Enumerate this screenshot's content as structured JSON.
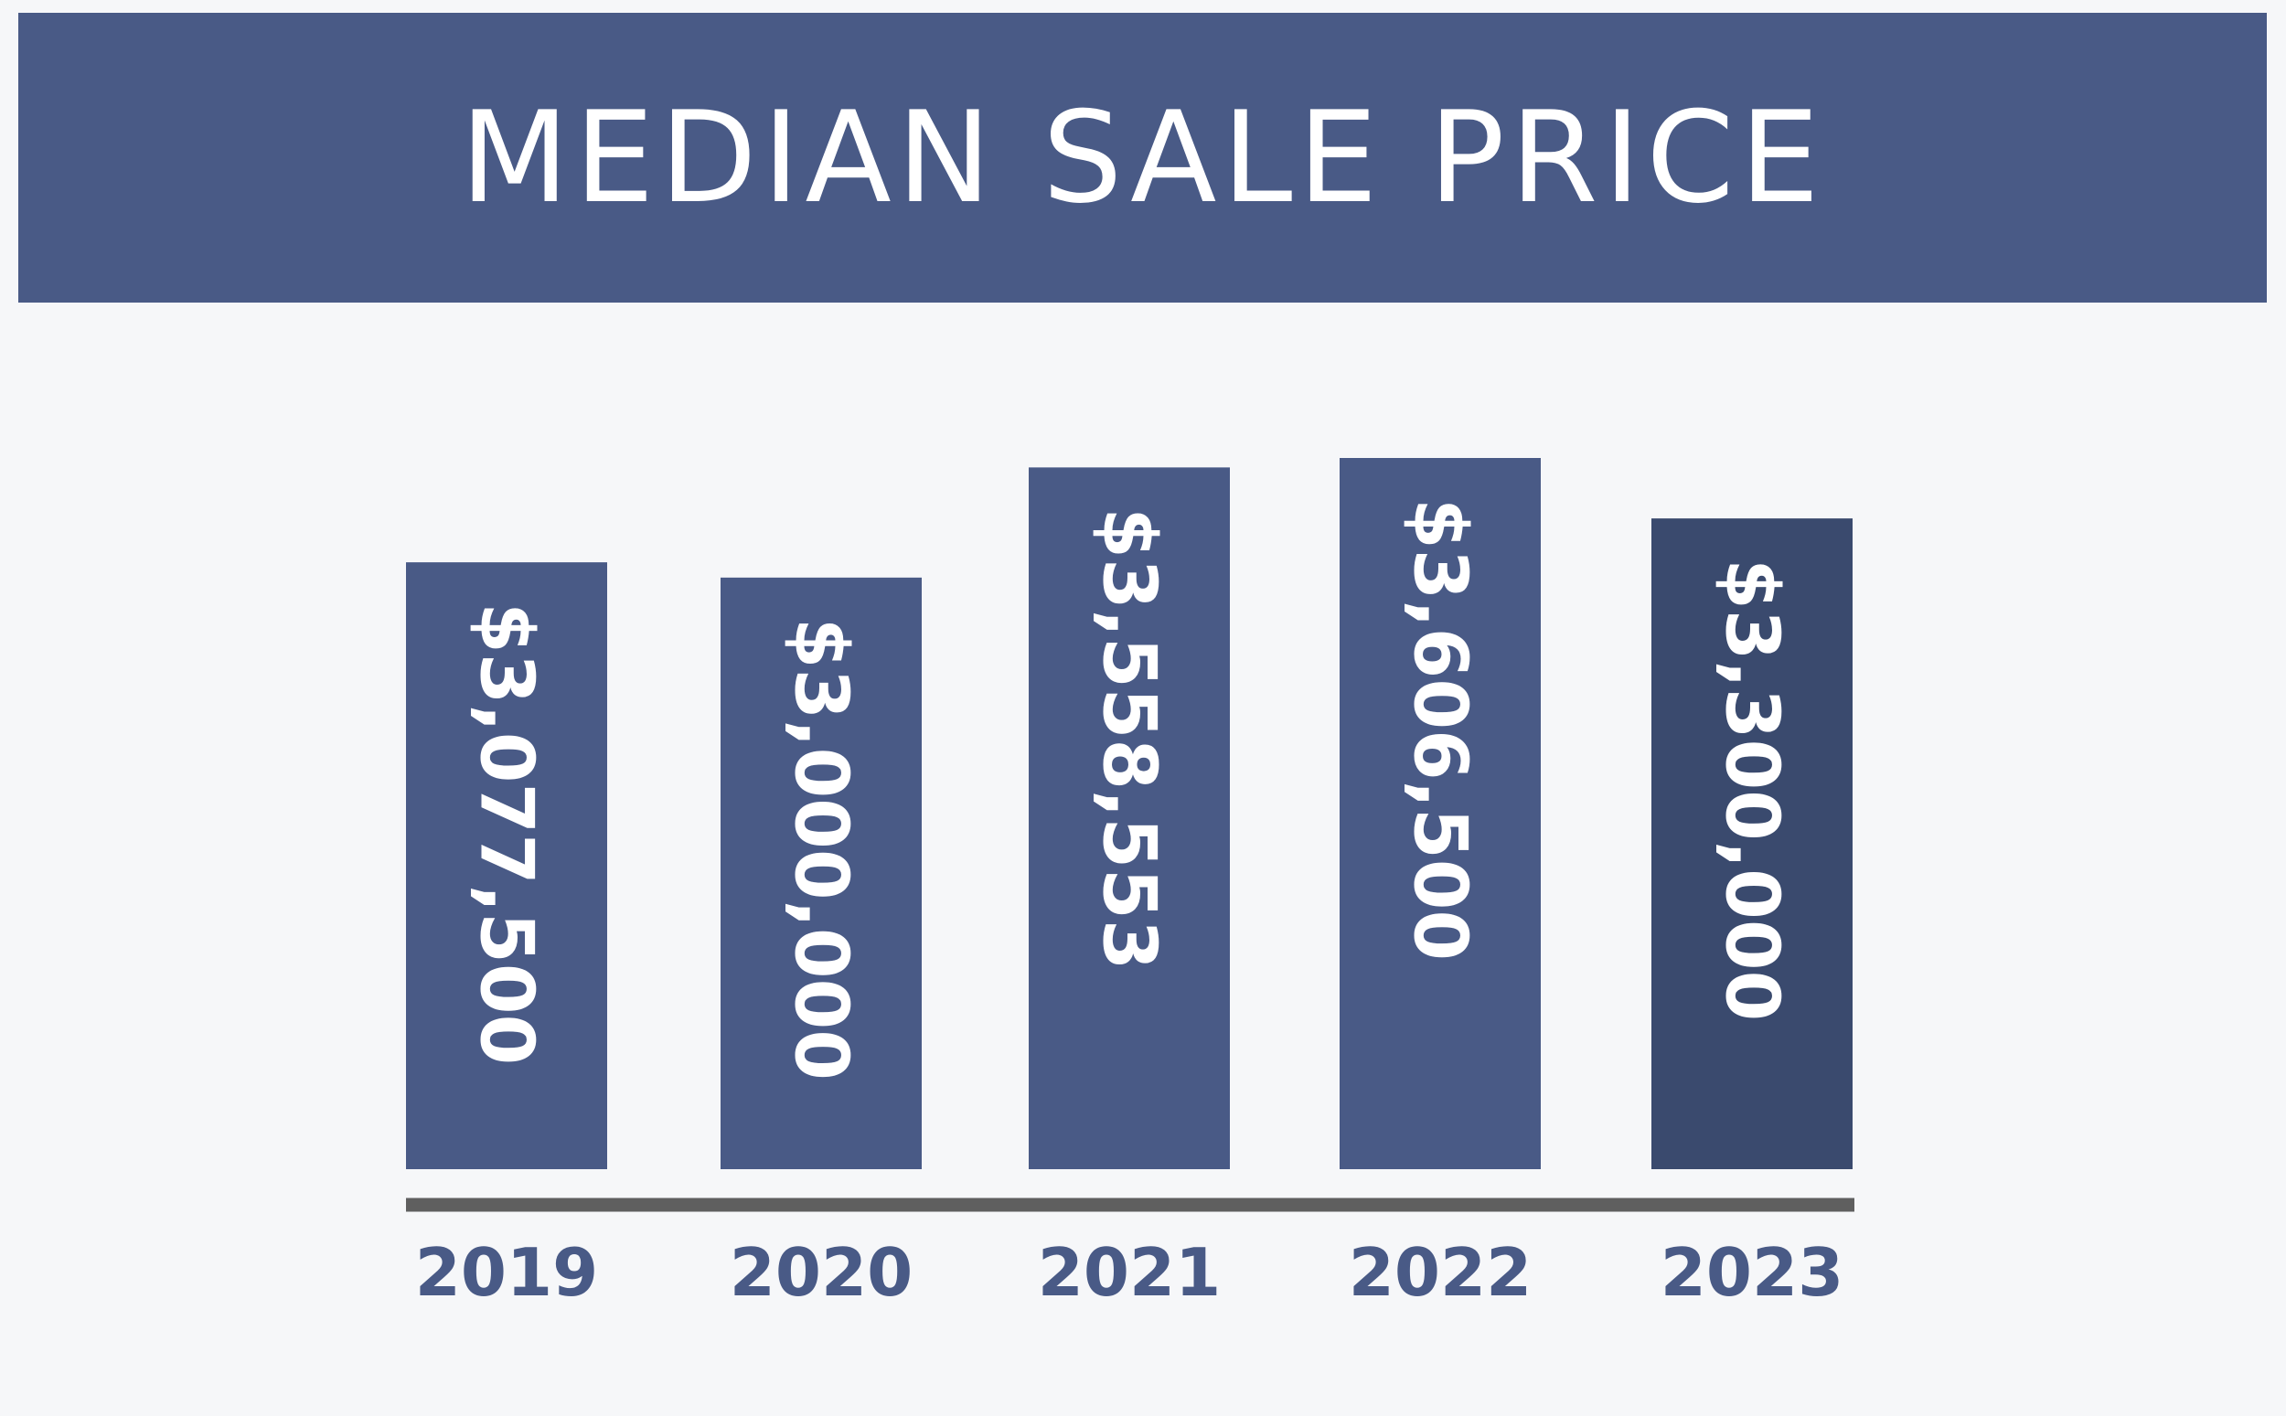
{
  "title": "MEDIAN SALE PRICE",
  "colors": {
    "background": "#f6f7f9",
    "banner": "#495a86",
    "bar": "#495a86",
    "bar_highlight": "#3a4a6e",
    "axis_line": "#5f5f5f",
    "tick_text": "#495a86",
    "label_text": "#ffffff"
  },
  "chart_data": {
    "type": "bar",
    "title": "MEDIAN SALE PRICE",
    "categories": [
      "2019",
      "2020",
      "2021",
      "2022",
      "2023"
    ],
    "values": [
      3077500,
      3000000,
      3558553,
      3606500,
      3300000
    ],
    "data_labels": [
      "$3,077,500",
      "$3,000,000",
      "$3,558,553",
      "$3,606,500",
      "$3,300,000"
    ],
    "highlight_index": 4,
    "label_orientation": "vertical",
    "xlabel": "",
    "ylabel": "",
    "y_axis_visible": false,
    "grid": false,
    "legend": "none"
  }
}
